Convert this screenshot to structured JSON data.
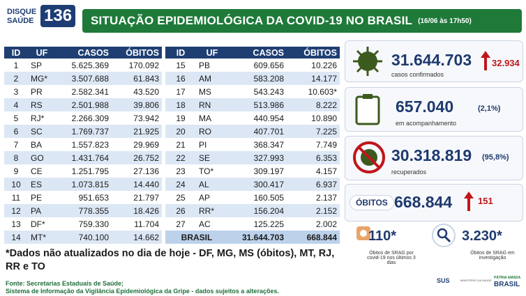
{
  "header": {
    "logo_line1": "DISQUE",
    "logo_line2": "SAÚDE",
    "logo_number": "136",
    "title": "SITUAÇÃO EPIDEMIOLÓGICA DA COVID-19 NO BRASIL",
    "timestamp": "(16/06 às 17h50)"
  },
  "table_left": {
    "columns": [
      "ID",
      "UF",
      "CASOS",
      "ÓBITOS"
    ],
    "rows": [
      [
        "1",
        "SP",
        "5.625.369",
        "170.092"
      ],
      [
        "2",
        "MG*",
        "3.507.688",
        "61.843"
      ],
      [
        "3",
        "PR",
        "2.582.341",
        "43.520"
      ],
      [
        "4",
        "RS",
        "2.501.988",
        "39.806"
      ],
      [
        "5",
        "RJ*",
        "2.266.309",
        "73.942"
      ],
      [
        "6",
        "SC",
        "1.769.737",
        "21.925"
      ],
      [
        "7",
        "BA",
        "1.557.823",
        "29.969"
      ],
      [
        "8",
        "GO",
        "1.431.764",
        "26.752"
      ],
      [
        "9",
        "CE",
        "1.251.795",
        "27.136"
      ],
      [
        "10",
        "ES",
        "1.073.815",
        "14.440"
      ],
      [
        "11",
        "PE",
        "951.653",
        "21.797"
      ],
      [
        "12",
        "PA",
        "778.355",
        "18.426"
      ],
      [
        "13",
        "DF*",
        "759.330",
        "11.704"
      ],
      [
        "14",
        "MT*",
        "740.100",
        "14.662"
      ]
    ]
  },
  "table_right": {
    "columns": [
      "ID",
      "UF",
      "CASOS",
      "ÓBITOS"
    ],
    "rows": [
      [
        "15",
        "PB",
        "609.656",
        "10.226"
      ],
      [
        "16",
        "AM",
        "583.208",
        "14.177"
      ],
      [
        "17",
        "MS",
        "543.243",
        "10.603*"
      ],
      [
        "18",
        "RN",
        "513.986",
        "8.222"
      ],
      [
        "19",
        "MA",
        "440.954",
        "10.890"
      ],
      [
        "20",
        "RO",
        "407.701",
        "7.225"
      ],
      [
        "21",
        "PI",
        "368.347",
        "7.749"
      ],
      [
        "22",
        "SE",
        "327.993",
        "6.353"
      ],
      [
        "23",
        "TO*",
        "309.197",
        "4.157"
      ],
      [
        "24",
        "AL",
        "300.417",
        "6.937"
      ],
      [
        "25",
        "AP",
        "160.505",
        "2.137"
      ],
      [
        "26",
        "RR*",
        "156.204",
        "2.152"
      ],
      [
        "27",
        "AC",
        "125.225",
        "2.002"
      ]
    ],
    "total": [
      "BRASIL",
      "31.644.703",
      "668.844"
    ]
  },
  "cards": {
    "confirmed": {
      "value": "31.644.703",
      "change": "32.934",
      "label": "casos confirmados"
    },
    "monitoring": {
      "value": "657.040",
      "pct": "(2,1%)",
      "label": "em acompanhamento"
    },
    "recovered": {
      "value": "30.318.819",
      "pct": "(95,8%)",
      "label": "recuperados"
    },
    "deaths": {
      "badge": "ÓBITOS",
      "value": "668.844",
      "change": "151"
    },
    "srag_recent": {
      "value": "110*",
      "label": "Óbitos de SRAG por covid-19 nos últimos 3 dias"
    },
    "srag_investigation": {
      "value": "3.230*",
      "label": "Óbitos de SRAG em investigação"
    }
  },
  "footnote": "*Dados não atualizados no dia de hoje - DF, MG, MS (óbitos), MT, RJ, RR e TO",
  "sources": [
    "Fonte: Secretarias Estaduais de Saúde;",
    "Sistema de Informação da Vigilância Epidemiológica da Gripe - dados sujeitos a alterações."
  ],
  "logos": {
    "sus": "SUS",
    "ministry": "MINISTÉRIO DA SAÚDE",
    "gov1": "PÁTRIA AMADA",
    "gov2": "BRASIL"
  }
}
